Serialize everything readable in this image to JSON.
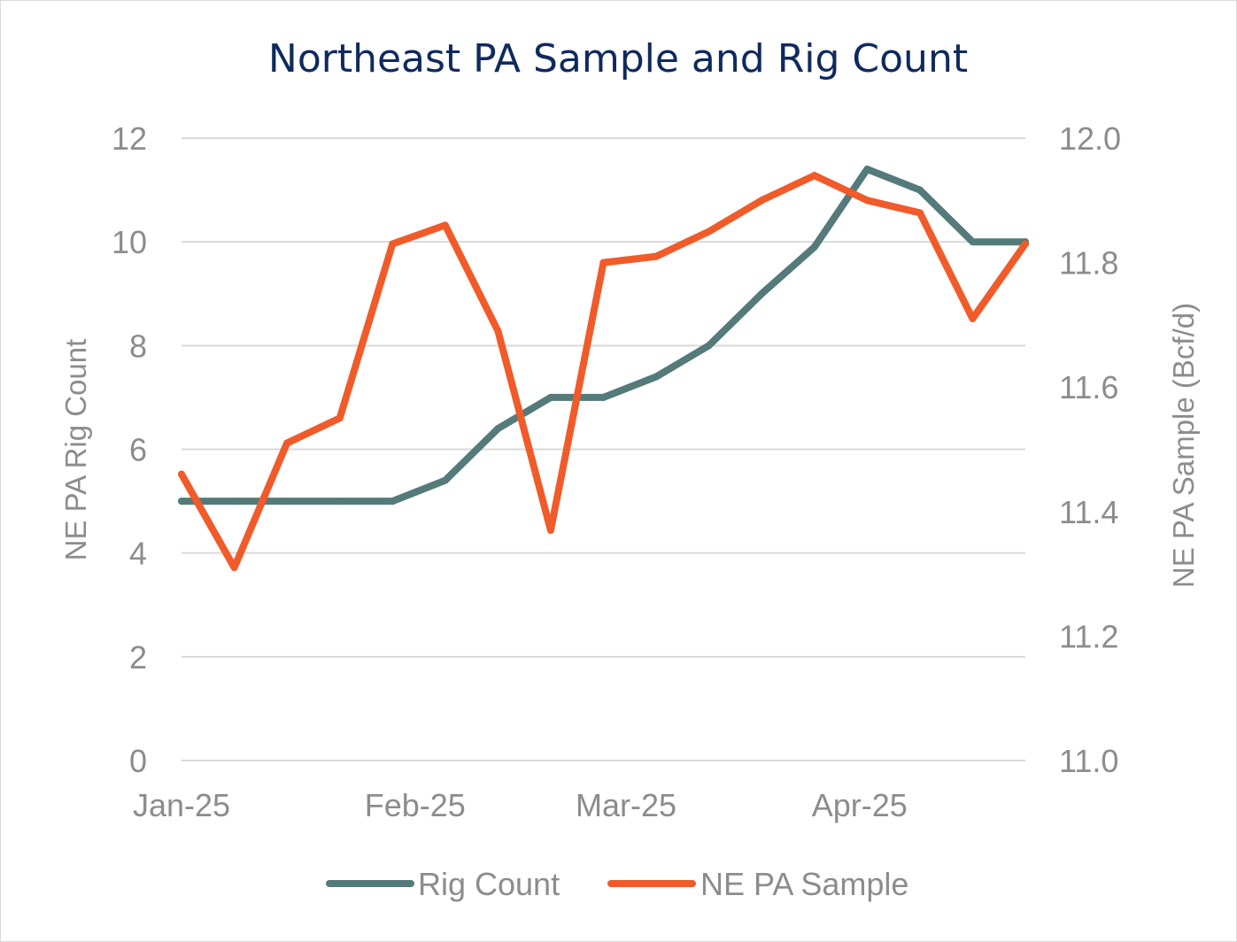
{
  "chart_data": {
    "type": "line",
    "title": "Northeast PA Sample and Rig Count",
    "x": [
      "2025-01-01",
      "2025-01-08",
      "2025-01-15",
      "2025-01-22",
      "2025-01-29",
      "2025-02-05",
      "2025-02-12",
      "2025-02-19",
      "2025-02-26",
      "2025-03-05",
      "2025-03-12",
      "2025-03-19",
      "2025-03-26",
      "2025-04-02",
      "2025-04-09",
      "2025-04-16",
      "2025-04-23"
    ],
    "x_tick_labels": [
      "Jan-25",
      "Feb-25",
      "Mar-25",
      "Apr-25"
    ],
    "x_tick_dates": [
      "2025-01-01",
      "2025-02-01",
      "2025-03-01",
      "2025-04-01"
    ],
    "y_left": {
      "label": "NE PA Rig Count",
      "lim": [
        0,
        12
      ],
      "ticks": [
        "0",
        "2",
        "4",
        "6",
        "8",
        "10",
        "12"
      ]
    },
    "y_right": {
      "label": "NE PA  Sample (Bcf/d)",
      "lim": [
        11.0,
        12.0
      ],
      "ticks": [
        "11.0",
        "11.2",
        "11.4",
        "11.6",
        "11.8",
        "12.0"
      ]
    },
    "series": [
      {
        "name": "Rig Count",
        "axis": "left",
        "color": "#547a7a",
        "values": [
          5,
          5,
          5,
          5,
          5,
          5.4,
          6.4,
          7,
          7,
          7.4,
          8,
          9,
          9.9,
          11.4,
          11,
          10,
          10
        ]
      },
      {
        "name": "NE PA Sample",
        "axis": "right",
        "color": "#f15a29",
        "values": [
          11.46,
          11.31,
          11.51,
          11.55,
          11.83,
          11.86,
          11.69,
          11.37,
          11.8,
          11.81,
          11.85,
          11.9,
          11.94,
          11.9,
          11.88,
          11.71,
          11.83
        ]
      }
    ],
    "grid": true,
    "legend": "bottom-center"
  }
}
